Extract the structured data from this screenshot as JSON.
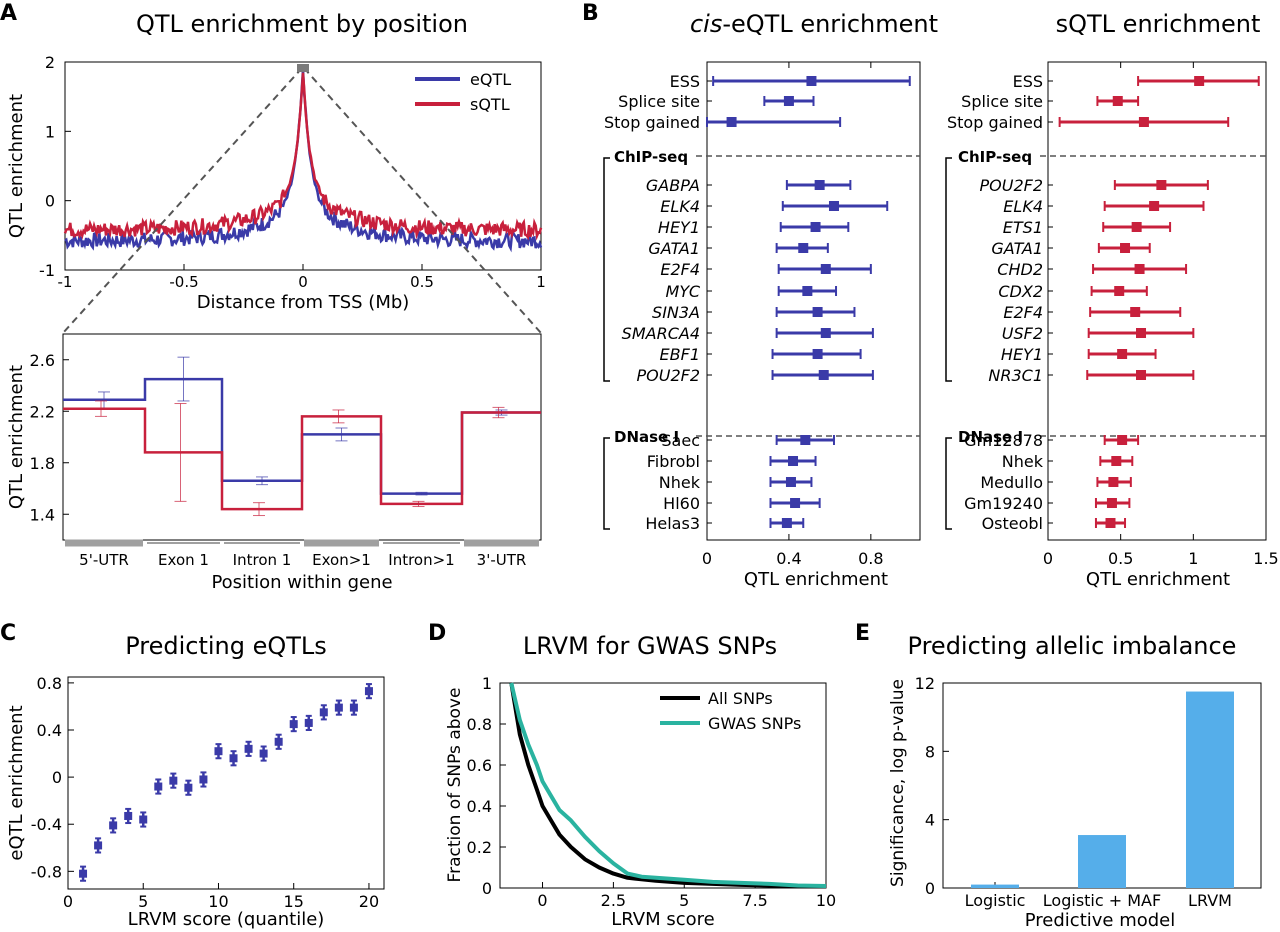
{
  "panels": {
    "A": "A",
    "B": "B",
    "C": "C",
    "D": "D",
    "E": "E"
  },
  "colors": {
    "eqtl": "#3a3aa8",
    "sqtl": "#c8203c",
    "black": "#000000",
    "teal": "#2ab3a0",
    "bar": "#55aeea",
    "grey": "#a0a0a0"
  },
  "chart_data": [
    {
      "id": "A_top",
      "type": "line",
      "title": "QTL enrichment by position",
      "xlabel": "Distance from TSS (Mb)",
      "ylabel": "QTL enrichment",
      "xlim": [
        -1,
        1
      ],
      "ylim": [
        -1,
        2
      ],
      "xticks": [
        -1,
        -0.5,
        0,
        0.5,
        1
      ],
      "xtick_labels": [
        "-1",
        "-0.5",
        "0",
        "0.5",
        "1"
      ],
      "yticks": [
        -1,
        0,
        1,
        2
      ],
      "ytick_labels": [
        "-1",
        "0",
        "1",
        "2"
      ],
      "legend": "top-right",
      "series": [
        {
          "name": "eQTL",
          "color": "#3a3aa8",
          "peak": 1.9,
          "base": -0.58
        },
        {
          "name": "sQTL",
          "color": "#c8203c",
          "peak": 1.88,
          "base": -0.42
        }
      ]
    },
    {
      "id": "A_bottom",
      "type": "line",
      "xlabel": "Position within gene",
      "ylabel": "QTL enrichment",
      "ylim": [
        1.2,
        2.8
      ],
      "yticks": [
        1.4,
        1.8,
        2.2,
        2.6
      ],
      "ytick_labels": [
        "1.4",
        "1.8",
        "2.2",
        "2.6"
      ],
      "categories": [
        "5'-UTR",
        "Exon 1",
        "Intron 1",
        "Exon>1",
        "Intron>1",
        "3'-UTR"
      ],
      "series": [
        {
          "name": "eQTL",
          "color": "#3a3aa8",
          "values": [
            2.29,
            2.45,
            1.66,
            2.02,
            1.56,
            2.19
          ],
          "err": [
            [
              2.22,
              2.35
            ],
            [
              2.28,
              2.62
            ],
            [
              1.63,
              1.69
            ],
            [
              1.97,
              2.07
            ],
            [
              1.55,
              1.57
            ],
            [
              2.17,
              2.21
            ]
          ]
        },
        {
          "name": "sQTL",
          "color": "#c8203c",
          "values": [
            2.22,
            1.88,
            1.44,
            2.16,
            1.48,
            2.19
          ],
          "err": [
            [
              2.16,
              2.28
            ],
            [
              1.5,
              2.26
            ],
            [
              1.39,
              1.49
            ],
            [
              2.11,
              2.21
            ],
            [
              1.46,
              1.5
            ],
            [
              2.15,
              2.23
            ]
          ]
        }
      ]
    },
    {
      "id": "B_cis",
      "type": "scatter",
      "title_italic": "cis",
      "title_rest": "-eQTL enrichment",
      "xlabel": "QTL enrichment",
      "xlim": [
        0,
        1.04
      ],
      "xticks": [
        0,
        0.4,
        0.8
      ],
      "xtick_labels": [
        "0",
        "0.4",
        "0.8"
      ],
      "color": "#3a3aa8",
      "groups": [
        {
          "header": "",
          "items": [
            {
              "label": "ESS",
              "italic": false,
              "value": 0.51,
              "lo": 0.03,
              "hi": 0.99
            },
            {
              "label": "Splice site",
              "italic": false,
              "value": 0.4,
              "lo": 0.28,
              "hi": 0.52
            },
            {
              "label": "Stop gained",
              "italic": false,
              "value": 0.12,
              "lo": 0.0,
              "hi": 0.65
            }
          ]
        },
        {
          "header": "ChIP-seq",
          "items": [
            {
              "label": "GABPA",
              "italic": true,
              "value": 0.55,
              "lo": 0.39,
              "hi": 0.7
            },
            {
              "label": "ELK4",
              "italic": true,
              "value": 0.62,
              "lo": 0.37,
              "hi": 0.88
            },
            {
              "label": "HEY1",
              "italic": true,
              "value": 0.53,
              "lo": 0.36,
              "hi": 0.69
            },
            {
              "label": "GATA1",
              "italic": true,
              "value": 0.47,
              "lo": 0.34,
              "hi": 0.59
            },
            {
              "label": "E2F4",
              "italic": true,
              "value": 0.58,
              "lo": 0.35,
              "hi": 0.8
            },
            {
              "label": "MYC",
              "italic": true,
              "value": 0.49,
              "lo": 0.35,
              "hi": 0.63
            },
            {
              "label": "SIN3A",
              "italic": true,
              "value": 0.54,
              "lo": 0.34,
              "hi": 0.72
            },
            {
              "label": "SMARCA4",
              "italic": true,
              "value": 0.58,
              "lo": 0.34,
              "hi": 0.81
            },
            {
              "label": "EBF1",
              "italic": true,
              "value": 0.54,
              "lo": 0.32,
              "hi": 0.75
            },
            {
              "label": "POU2F2",
              "italic": true,
              "value": 0.57,
              "lo": 0.32,
              "hi": 0.81
            }
          ]
        },
        {
          "header": "DNase I",
          "items": [
            {
              "label": "Saec",
              "italic": false,
              "value": 0.48,
              "lo": 0.34,
              "hi": 0.62
            },
            {
              "label": "Fibrobl",
              "italic": false,
              "value": 0.42,
              "lo": 0.31,
              "hi": 0.53
            },
            {
              "label": "Nhek",
              "italic": false,
              "value": 0.41,
              "lo": 0.31,
              "hi": 0.51
            },
            {
              "label": "Hl60",
              "italic": false,
              "value": 0.43,
              "lo": 0.31,
              "hi": 0.55
            },
            {
              "label": "Helas3",
              "italic": false,
              "value": 0.39,
              "lo": 0.31,
              "hi": 0.47
            }
          ]
        }
      ]
    },
    {
      "id": "B_sqtl",
      "type": "scatter",
      "title": "sQTL enrichment",
      "xlabel": "QTL enrichment",
      "xlim": [
        0,
        1.5
      ],
      "xticks": [
        0,
        0.5,
        1,
        1.5
      ],
      "xtick_labels": [
        "0",
        "0.5",
        "1",
        "1.5"
      ],
      "color": "#c8203c",
      "groups": [
        {
          "header": "",
          "items": [
            {
              "label": "ESS",
              "italic": false,
              "value": 1.04,
              "lo": 0.62,
              "hi": 1.45
            },
            {
              "label": "Splice site",
              "italic": false,
              "value": 0.48,
              "lo": 0.34,
              "hi": 0.62
            },
            {
              "label": "Stop gained",
              "italic": false,
              "value": 0.66,
              "lo": 0.08,
              "hi": 1.24
            }
          ]
        },
        {
          "header": "ChIP-seq",
          "items": [
            {
              "label": "POU2F2",
              "italic": true,
              "value": 0.78,
              "lo": 0.46,
              "hi": 1.1
            },
            {
              "label": "ELK4",
              "italic": true,
              "value": 0.73,
              "lo": 0.39,
              "hi": 1.07
            },
            {
              "label": "ETS1",
              "italic": true,
              "value": 0.61,
              "lo": 0.38,
              "hi": 0.84
            },
            {
              "label": "GATA1",
              "italic": true,
              "value": 0.53,
              "lo": 0.35,
              "hi": 0.7
            },
            {
              "label": "CHD2",
              "italic": true,
              "value": 0.63,
              "lo": 0.31,
              "hi": 0.95
            },
            {
              "label": "CDX2",
              "italic": true,
              "value": 0.49,
              "lo": 0.3,
              "hi": 0.68
            },
            {
              "label": "E2F4",
              "italic": true,
              "value": 0.6,
              "lo": 0.29,
              "hi": 0.91
            },
            {
              "label": "USF2",
              "italic": true,
              "value": 0.64,
              "lo": 0.28,
              "hi": 1.0
            },
            {
              "label": "HEY1",
              "italic": true,
              "value": 0.51,
              "lo": 0.28,
              "hi": 0.74
            },
            {
              "label": "NR3C1",
              "italic": true,
              "value": 0.64,
              "lo": 0.27,
              "hi": 1.0
            }
          ]
        },
        {
          "header": "DNase I",
          "items": [
            {
              "label": "Gm12878",
              "italic": false,
              "value": 0.51,
              "lo": 0.39,
              "hi": 0.62
            },
            {
              "label": "Nhek",
              "italic": false,
              "value": 0.47,
              "lo": 0.36,
              "hi": 0.58
            },
            {
              "label": "Medullo",
              "italic": false,
              "value": 0.45,
              "lo": 0.34,
              "hi": 0.57
            },
            {
              "label": "Gm19240",
              "italic": false,
              "value": 0.44,
              "lo": 0.33,
              "hi": 0.56
            },
            {
              "label": "Osteobl",
              "italic": false,
              "value": 0.43,
              "lo": 0.33,
              "hi": 0.53
            }
          ]
        }
      ]
    },
    {
      "id": "C",
      "type": "scatter",
      "title": "Predicting eQTLs",
      "xlabel": "LRVM score (quantile)",
      "ylabel": "eQTL enrichment",
      "xlim": [
        0,
        21
      ],
      "ylim": [
        -0.95,
        0.85
      ],
      "xticks": [
        0,
        5,
        10,
        15,
        20
      ],
      "xtick_labels": [
        "0",
        "5",
        "10",
        "15",
        "20"
      ],
      "yticks": [
        -0.8,
        -0.4,
        0,
        0.4,
        0.8
      ],
      "ytick_labels": [
        "-0.8",
        "-0.4",
        "0",
        "0.4",
        "0.8"
      ],
      "color": "#3a3aa8",
      "x": [
        1,
        2,
        3,
        4,
        5,
        6,
        7,
        8,
        9,
        10,
        11,
        12,
        13,
        14,
        15,
        16,
        17,
        18,
        19,
        20
      ],
      "y": [
        -0.82,
        -0.58,
        -0.41,
        -0.33,
        -0.36,
        -0.08,
        -0.03,
        -0.09,
        -0.02,
        0.22,
        0.16,
        0.24,
        0.2,
        0.3,
        0.45,
        0.46,
        0.55,
        0.59,
        0.59,
        0.73
      ],
      "err": 0.06
    },
    {
      "id": "D",
      "type": "line",
      "title": "LRVM for GWAS SNPs",
      "xlabel": "LRVM score",
      "ylabel": "Fraction of SNPs above",
      "xlim": [
        -1.5,
        10
      ],
      "ylim": [
        0,
        1
      ],
      "xticks": [
        0,
        2.5,
        5,
        7.5,
        10
      ],
      "xtick_labels": [
        "0",
        "2.5",
        "5",
        "7.5",
        "10"
      ],
      "yticks": [
        0,
        0.2,
        0.4,
        0.6,
        0.8,
        1
      ],
      "ytick_labels": [
        "0",
        "0.2",
        "0.4",
        "0.6",
        "0.8",
        "1"
      ],
      "legend": "top-right",
      "series": [
        {
          "name": "All SNPs",
          "color": "#000000",
          "x": [
            -1.1,
            -0.8,
            -0.5,
            -0.2,
            0,
            0.3,
            0.6,
            1,
            1.5,
            2,
            2.5,
            3,
            4,
            5,
            6,
            7,
            8,
            9,
            10
          ],
          "y": [
            1,
            0.75,
            0.6,
            0.48,
            0.4,
            0.33,
            0.26,
            0.2,
            0.14,
            0.1,
            0.07,
            0.05,
            0.035,
            0.025,
            0.02,
            0.015,
            0.012,
            0.01,
            0.008
          ]
        },
        {
          "name": "GWAS SNPs",
          "color": "#2ab3a0",
          "x": [
            -1.1,
            -0.8,
            -0.5,
            -0.2,
            0,
            0.3,
            0.6,
            1,
            1.5,
            2,
            2.5,
            3,
            3.5,
            4,
            5,
            6,
            7,
            8,
            9,
            10
          ],
          "y": [
            1,
            0.82,
            0.7,
            0.6,
            0.52,
            0.45,
            0.38,
            0.33,
            0.25,
            0.18,
            0.12,
            0.07,
            0.055,
            0.05,
            0.04,
            0.03,
            0.025,
            0.02,
            0.012,
            0.01
          ]
        }
      ]
    },
    {
      "id": "E",
      "type": "bar",
      "title": "Predicting allelic imbalance",
      "xlabel": "Predictive model",
      "ylabel": "Significance, log p-value",
      "ylim": [
        0,
        12
      ],
      "yticks": [
        0,
        4,
        8,
        12
      ],
      "ytick_labels": [
        "0",
        "4",
        "8",
        "12"
      ],
      "color": "#55aeea",
      "categories": [
        "Logistic",
        "Logistic + MAF",
        "LRVM"
      ],
      "values": [
        0.2,
        3.1,
        11.5
      ]
    }
  ]
}
